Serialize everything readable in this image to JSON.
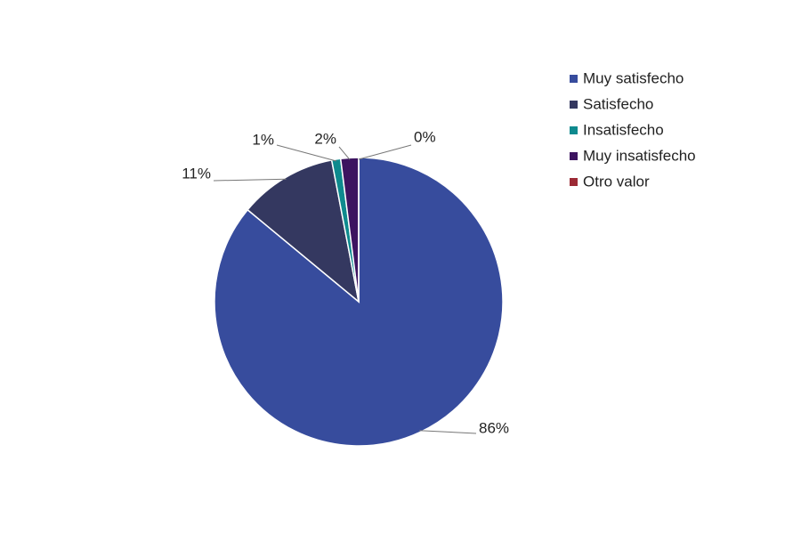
{
  "chart_data": {
    "type": "pie",
    "categories": [
      "Muy satisfecho",
      "Satisfecho",
      "Insatisfecho",
      "Muy insatisfecho",
      "Otro valor"
    ],
    "values": [
      86,
      11,
      1,
      2,
      0
    ],
    "value_labels": [
      "86%",
      "11%",
      "1%",
      "2%",
      "0%"
    ],
    "colors": [
      "#374c9d",
      "#343860",
      "#0e8a8e",
      "#3d1460",
      "#9c2a35"
    ],
    "legend": "right"
  }
}
